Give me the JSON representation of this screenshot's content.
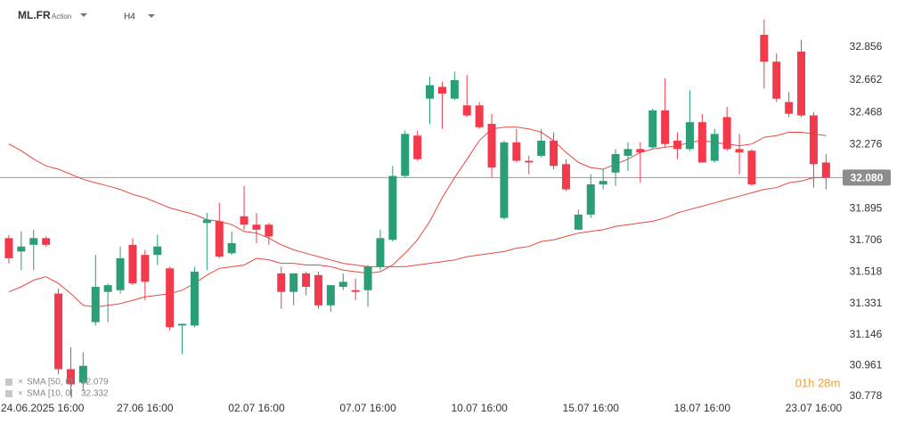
{
  "chart_data": {
    "type": "candlestick",
    "title": "ML.FR",
    "subtitle": "Action",
    "timeframe": "H4",
    "categories": [
      null,
      null,
      "24.06.2025 16:00",
      null,
      null,
      null,
      null,
      null,
      null,
      null,
      null,
      "27.06 16:00",
      null,
      null,
      null,
      null,
      null,
      null,
      null,
      null,
      "02.07 16:00",
      null,
      null,
      null,
      null,
      null,
      null,
      null,
      null,
      "07.07 16:00",
      null,
      null,
      null,
      null,
      null,
      null,
      null,
      null,
      "10.07 16:00",
      null,
      null,
      null,
      null,
      null,
      null,
      null,
      null,
      "15.07 16:00",
      null,
      null,
      null,
      null,
      null,
      null,
      null,
      null,
      "18.07 16:00",
      null,
      null,
      null,
      null,
      null,
      null,
      null,
      null,
      "23.07 16:00",
      null
    ],
    "open": [
      31.72,
      31.64,
      31.68,
      31.72,
      31.39,
      30.94,
      30.86,
      31.22,
      31.4,
      31.41,
      31.68,
      31.62,
      31.62,
      31.54,
      31.2,
      31.2,
      31.81,
      31.82,
      31.63,
      31.85,
      31.8,
      31.8,
      31.51,
      31.4,
      31.51,
      31.5,
      31.32,
      31.43,
      31.41,
      31.41,
      31.55,
      31.71,
      32.09,
      32.33,
      32.55,
      32.62,
      32.55,
      32.51,
      32.51,
      32.4,
      31.84,
      32.29,
      32.18,
      32.21,
      32.3,
      32.16,
      31.77,
      31.86,
      32.04,
      32.11,
      32.21,
      32.25,
      32.26,
      32.48,
      32.3,
      32.25,
      32.41,
      32.18,
      32.44,
      32.25,
      32.24,
      32.93,
      32.77,
      32.53,
      32.83,
      32.45,
      32.17
    ],
    "high": [
      31.74,
      31.76,
      31.77,
      31.73,
      31.42,
      31.07,
      31.04,
      31.62,
      31.45,
      31.67,
      31.72,
      31.65,
      31.74,
      31.55,
      31.21,
      31.55,
      31.87,
      31.93,
      31.76,
      32.03,
      31.87,
      31.81,
      31.55,
      31.51,
      31.52,
      31.52,
      31.44,
      31.51,
      31.48,
      31.56,
      31.77,
      32.15,
      32.36,
      32.36,
      32.68,
      32.65,
      32.71,
      32.69,
      32.53,
      32.46,
      32.3,
      32.37,
      32.21,
      32.37,
      32.35,
      32.19,
      31.89,
      32.1,
      32.13,
      32.25,
      32.29,
      32.29,
      32.49,
      32.67,
      32.35,
      32.6,
      32.46,
      32.37,
      32.5,
      32.34,
      32.25,
      33.02,
      32.82,
      32.59,
      32.9,
      32.47,
      32.22
    ],
    "low": [
      31.57,
      31.53,
      31.53,
      31.67,
      30.91,
      30.78,
      30.81,
      31.2,
      31.22,
      31.39,
      31.44,
      31.35,
      31.56,
      31.17,
      31.03,
      31.19,
      31.53,
      31.6,
      31.62,
      31.77,
      31.69,
      31.68,
      31.3,
      31.32,
      31.38,
      31.3,
      31.28,
      31.41,
      31.35,
      31.31,
      31.53,
      31.7,
      32.08,
      32.18,
      32.4,
      32.37,
      32.54,
      32.44,
      32.37,
      32.08,
      31.83,
      32.17,
      32.1,
      32.2,
      32.13,
      32.0,
      31.77,
      31.84,
      32.01,
      32.03,
      32.12,
      32.05,
      32.25,
      32.26,
      32.19,
      32.24,
      32.17,
      32.17,
      32.24,
      32.1,
      32.03,
      32.61,
      32.53,
      32.44,
      32.44,
      32.02,
      32.01
    ],
    "close": [
      31.6,
      31.67,
      31.72,
      31.68,
      30.94,
      30.85,
      30.96,
      31.43,
      31.44,
      31.6,
      31.45,
      31.46,
      31.67,
      31.19,
      31.21,
      31.52,
      31.83,
      31.61,
      31.69,
      31.8,
      31.77,
      31.73,
      31.4,
      31.51,
      31.43,
      31.32,
      31.44,
      31.46,
      31.4,
      31.55,
      31.72,
      32.09,
      32.34,
      32.19,
      32.63,
      32.58,
      32.66,
      32.45,
      32.38,
      32.14,
      32.29,
      32.18,
      32.17,
      32.3,
      32.15,
      32.01,
      31.86,
      32.04,
      32.06,
      32.22,
      32.25,
      32.23,
      32.48,
      32.28,
      32.25,
      32.41,
      32.17,
      32.34,
      32.25,
      32.23,
      32.04,
      32.77,
      32.55,
      32.46,
      32.45,
      32.16,
      32.08
    ],
    "up_color": "#2a9f76",
    "down_color": "#f23a4c",
    "series": [
      {
        "name": "SMA [50, 0]",
        "legend_value": "32.079",
        "color": "#e8493f",
        "values": [
          32.28,
          32.24,
          32.19,
          32.15,
          32.13,
          32.1,
          32.07,
          32.05,
          32.03,
          32.01,
          31.98,
          31.96,
          31.93,
          31.9,
          31.88,
          31.86,
          31.83,
          31.82,
          31.8,
          31.76,
          31.75,
          31.72,
          31.68,
          31.65,
          31.63,
          31.61,
          31.59,
          31.57,
          31.56,
          31.55,
          31.55,
          31.55,
          31.55,
          31.56,
          31.57,
          31.58,
          31.59,
          31.61,
          31.62,
          31.63,
          31.64,
          31.66,
          31.67,
          31.7,
          31.71,
          31.73,
          31.75,
          31.76,
          31.77,
          31.79,
          31.8,
          31.81,
          31.82,
          31.84,
          31.87,
          31.89,
          31.91,
          31.93,
          31.95,
          31.97,
          31.99,
          32.01,
          32.02,
          32.05,
          32.06,
          32.08,
          32.08
        ]
      },
      {
        "name": "SMA [10, 0]",
        "legend_value": "32.332",
        "color": "#e8493f",
        "values": [
          31.4,
          31.43,
          31.47,
          31.49,
          31.45,
          31.39,
          31.32,
          31.31,
          31.32,
          31.33,
          31.35,
          31.37,
          31.38,
          31.39,
          31.41,
          31.45,
          31.5,
          31.54,
          31.55,
          31.56,
          31.6,
          31.59,
          31.57,
          31.57,
          31.56,
          31.56,
          31.55,
          31.53,
          31.52,
          31.51,
          31.52,
          31.56,
          31.63,
          31.71,
          31.82,
          31.96,
          32.08,
          32.19,
          32.3,
          32.37,
          32.38,
          32.38,
          32.37,
          32.35,
          32.3,
          32.23,
          32.17,
          32.14,
          32.13,
          32.16,
          32.19,
          32.23,
          32.25,
          32.26,
          32.27,
          32.29,
          32.3,
          32.29,
          32.28,
          32.27,
          32.28,
          32.32,
          32.33,
          32.35,
          32.35,
          32.34,
          32.33
        ]
      }
    ],
    "current_price": {
      "value": 32.08,
      "label": "32.080"
    },
    "countdown": "01h 28m",
    "ylim": [
      30.688,
      33.137
    ],
    "yticks": [
      32.856,
      32.662,
      32.468,
      32.276,
      31.895,
      31.706,
      31.518,
      31.331,
      31.146,
      30.961,
      30.778
    ],
    "grid": false
  }
}
